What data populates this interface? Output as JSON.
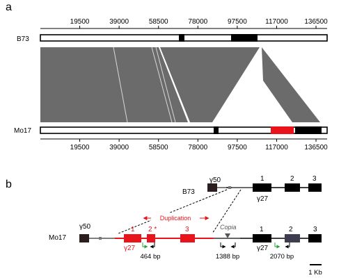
{
  "panel_a": {
    "label": "a",
    "genome_top": "B73",
    "genome_bottom": "Mo17",
    "ticks": [
      "19500",
      "39000",
      "58500",
      "78000",
      "97500",
      "117000",
      "136500"
    ]
  },
  "panel_b": {
    "label": "b",
    "b73": {
      "name": "B73",
      "gamma50": "γ50",
      "gamma27": "γ27",
      "exons": [
        "1",
        "2",
        "3"
      ]
    },
    "mo17": {
      "name": "Mo17",
      "gamma50": "γ50",
      "duplication_label": "Duplication",
      "dup_exons": [
        "1",
        "2 *",
        "3"
      ],
      "gamma27_dup": "γ27",
      "copia_label": "Copia",
      "exons": [
        "1",
        "2",
        "3"
      ],
      "gamma27": "γ27",
      "bp_labels": [
        "464 bp",
        "1388 bp",
        "2070 bp"
      ]
    },
    "scale_label": "1 Kb"
  },
  "colors": {
    "synteny": "#6b6b6b",
    "duplication": "#e8131b",
    "gene": "#000000",
    "arrow_green": "#22a53a"
  }
}
